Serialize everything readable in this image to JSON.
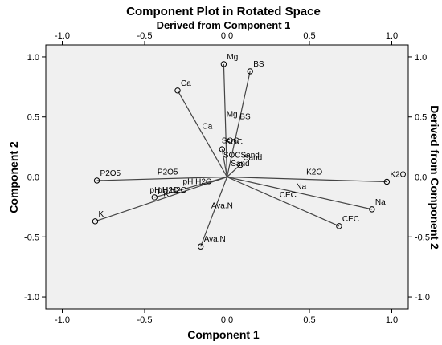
{
  "chart_data": {
    "type": "scatter",
    "title": "Component Plot in Rotated Space",
    "top_axis_label": "Derived from Component 1",
    "xlabel": "Component 1",
    "ylabel": "Component 2",
    "right_axis_label": "Derived from Component 2",
    "xlim": [
      -1.1,
      1.1
    ],
    "ylim": [
      -1.1,
      1.1
    ],
    "x_ticks": [
      -1.0,
      -0.5,
      0.0,
      0.5,
      1.0
    ],
    "y_ticks": [
      -1.0,
      -0.5,
      0.0,
      0.5,
      1.0
    ],
    "x_tick_labels": [
      "-1.0",
      "-0.5",
      "0.0",
      "0.5",
      "1.0"
    ],
    "y_tick_labels": [
      "-1.0",
      "-0.5",
      "0.0",
      "0.5",
      "1.0"
    ],
    "plot_background": "#f0f0f0",
    "grid": false,
    "points": [
      {
        "label": "Mg",
        "x": -0.02,
        "y": 0.94
      },
      {
        "label": "BS",
        "x": 0.14,
        "y": 0.88
      },
      {
        "label": "Ca",
        "x": -0.3,
        "y": 0.72
      },
      {
        "label": "SOC",
        "x": -0.03,
        "y": 0.23
      },
      {
        "label": "Sand",
        "x": 0.08,
        "y": 0.1
      },
      {
        "label": "K2O",
        "x": 0.97,
        "y": -0.04
      },
      {
        "label": "P2O5",
        "x": -0.79,
        "y": -0.03
      },
      {
        "label": "pH H2O",
        "x": -0.44,
        "y": -0.17
      },
      {
        "label": "Na",
        "x": 0.88,
        "y": -0.27
      },
      {
        "label": "CEC",
        "x": 0.68,
        "y": -0.41
      },
      {
        "label": "K",
        "x": -0.8,
        "y": -0.37
      },
      {
        "label": "Ava.N",
        "x": -0.16,
        "y": -0.58
      }
    ],
    "mid_labels": [
      {
        "label": "Mg",
        "x": 0.03,
        "y": 0.5
      },
      {
        "label": "BS",
        "x": 0.11,
        "y": 0.48
      },
      {
        "label": "Ca",
        "x": -0.12,
        "y": 0.4
      },
      {
        "label": "SOC",
        "x": 0.02,
        "y": 0.28
      },
      {
        "label": "SOC",
        "x": 0.03,
        "y": 0.16
      },
      {
        "label": "Sand",
        "x": 0.14,
        "y": 0.16
      },
      {
        "label": "Sand",
        "x": 0.08,
        "y": 0.09
      },
      {
        "label": "K2O",
        "x": 0.53,
        "y": 0.02
      },
      {
        "label": "P2O5",
        "x": -0.36,
        "y": 0.02
      },
      {
        "label": "pH H2O",
        "x": -0.18,
        "y": -0.06
      },
      {
        "label": "pH H2O",
        "x": -0.38,
        "y": -0.13
      },
      {
        "label": "K",
        "x": -0.37,
        "y": -0.16
      },
      {
        "label": "Na",
        "x": 0.45,
        "y": -0.1
      },
      {
        "label": "CEC",
        "x": 0.37,
        "y": -0.17
      },
      {
        "label": "Ava.N",
        "x": -0.03,
        "y": -0.26
      }
    ]
  }
}
